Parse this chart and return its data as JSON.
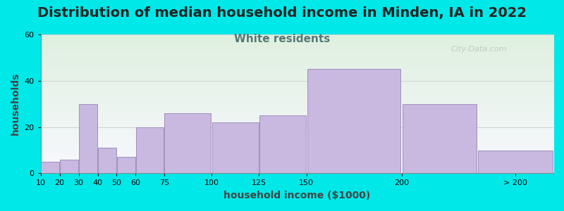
{
  "title": "Distribution of median household income in Minden, IA in 2022",
  "subtitle": "White residents",
  "xlabel": "household income ($1000)",
  "ylabel": "households",
  "bar_labels": [
    "10",
    "20",
    "30",
    "40",
    "50",
    "60",
    "75",
    "100",
    "125",
    "150",
    "200",
    "> 200"
  ],
  "bar_heights": [
    5,
    6,
    30,
    11,
    7,
    20,
    26,
    22,
    25,
    45,
    30,
    10
  ],
  "bar_lefts": [
    10,
    20,
    30,
    40,
    50,
    60,
    75,
    100,
    125,
    150,
    200,
    240
  ],
  "bar_widths": [
    10,
    10,
    10,
    10,
    10,
    15,
    25,
    25,
    25,
    50,
    40,
    40
  ],
  "bar_color": "#c9b8df",
  "bar_edge_color": "#a090c0",
  "ylim": [
    0,
    60
  ],
  "yticks": [
    0,
    20,
    40,
    60
  ],
  "xlim_left": 10,
  "xlim_right": 280,
  "xtick_positions": [
    10,
    20,
    30,
    40,
    50,
    60,
    75,
    100,
    125,
    150,
    200,
    260
  ],
  "background_outer": "#00e8e8",
  "background_plot_top": "#dff0df",
  "background_plot_bottom": "#f8f8ff",
  "title_fontsize": 14,
  "title_color": "#222222",
  "subtitle_fontsize": 11,
  "subtitle_color": "#557777",
  "axis_label_fontsize": 10,
  "tick_fontsize": 8,
  "watermark": "City-Data.com"
}
